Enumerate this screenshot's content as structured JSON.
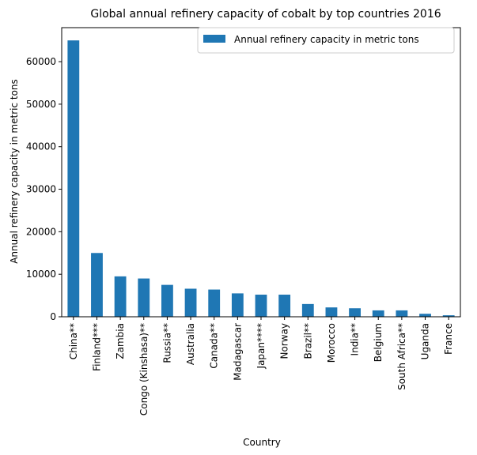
{
  "chart_data": {
    "type": "bar",
    "title": "Global annual refinery capacity of cobalt by top countries 2016",
    "xlabel": "Country",
    "ylabel": "Annual refinery capacity in metric tons",
    "categories": [
      "China**",
      "Finland***",
      "Zambia",
      "Congo (Kinshasa)**",
      "Russia**",
      "Australia",
      "Canada**",
      "Madagascar",
      "Japan****",
      "Norway",
      "Brazil**",
      "Morocco",
      "India**",
      "Belgium",
      "South Africa**",
      "Uganda",
      "France"
    ],
    "series": [
      {
        "name": "Annual refinery capacity in metric tons",
        "values": [
          65000,
          15000,
          9500,
          9000,
          7500,
          6600,
          6400,
          5500,
          5200,
          5200,
          3000,
          2200,
          2000,
          1500,
          1500,
          700,
          350
        ]
      }
    ],
    "ylim": [
      0,
      68000
    ],
    "yticks": [
      0,
      10000,
      20000,
      30000,
      40000,
      50000,
      60000
    ],
    "grid": false,
    "legend_position": "upper right",
    "bar_color": "#1f77b4"
  }
}
